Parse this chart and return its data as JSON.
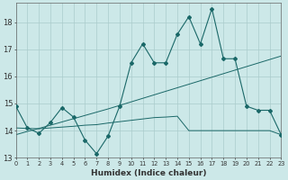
{
  "xlabel": "Humidex (Indice chaleur)",
  "background_color": "#cce8e8",
  "grid_color": "#aacccc",
  "line_color": "#1a6868",
  "x_values": [
    0,
    1,
    2,
    3,
    4,
    5,
    6,
    7,
    8,
    9,
    10,
    11,
    12,
    13,
    14,
    15,
    16,
    17,
    18,
    19,
    20,
    21,
    22,
    23
  ],
  "series1": [
    14.9,
    14.1,
    13.9,
    14.3,
    14.85,
    14.5,
    13.65,
    13.15,
    13.8,
    14.9,
    16.5,
    17.2,
    16.5,
    16.5,
    17.55,
    18.2,
    17.2,
    18.5,
    16.65,
    16.65,
    14.9,
    14.75,
    14.75,
    13.85
  ],
  "series2_slope": [
    13.85,
    13.97,
    14.08,
    14.2,
    14.32,
    14.44,
    14.56,
    14.68,
    14.8,
    14.93,
    15.06,
    15.19,
    15.32,
    15.45,
    15.58,
    15.71,
    15.84,
    15.97,
    16.1,
    16.23,
    16.36,
    16.49,
    16.62,
    16.75
  ],
  "series3_flat": [
    14.1,
    14.08,
    14.07,
    14.1,
    14.13,
    14.16,
    14.2,
    14.22,
    14.28,
    14.33,
    14.38,
    14.43,
    14.48,
    14.5,
    14.53,
    14.0,
    14.0,
    14.0,
    14.0,
    14.0,
    14.0,
    14.0,
    14.0,
    13.85
  ],
  "ylim": [
    13.0,
    18.7
  ],
  "yticks": [
    13,
    14,
    15,
    16,
    17,
    18
  ],
  "xlim": [
    0,
    23
  ]
}
